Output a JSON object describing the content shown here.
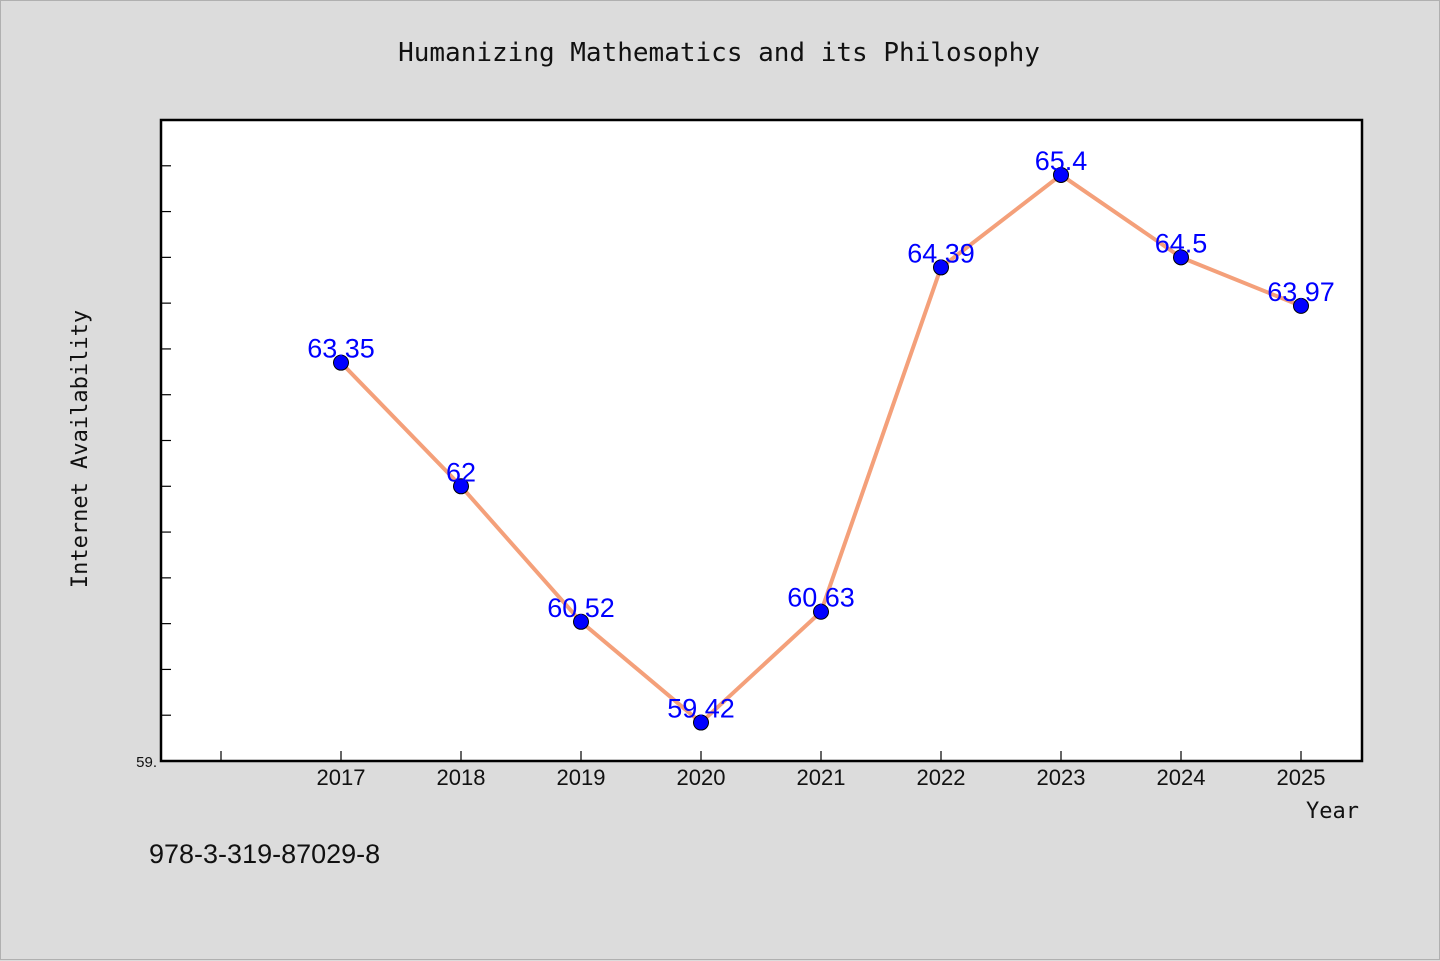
{
  "chart_data": {
    "type": "line",
    "title": "Humanizing Mathematics and its Philosophy",
    "xlabel": "Year",
    "ylabel": "Internet Availability",
    "x": [
      "2017",
      "2018",
      "2019",
      "2020",
      "2021",
      "2022",
      "2023",
      "2024",
      "2025"
    ],
    "series": [
      {
        "values": [
          63.35,
          62,
          60.52,
          59.42,
          60.63,
          64.39,
          65.4,
          64.5,
          63.97
        ],
        "labels": [
          "63.35",
          "62",
          "60.52",
          "59.42",
          "60.63",
          "64.39",
          "65.4",
          "64.5",
          "63.97"
        ]
      }
    ],
    "ylim": [
      59,
      66
    ],
    "y_tick_label": "59.",
    "grid": false,
    "line_color": "#f4a07a",
    "marker_color": "#0000ff",
    "label_color": "#0000ff"
  },
  "footer": {
    "isbn": "978-3-319-87029-8"
  }
}
